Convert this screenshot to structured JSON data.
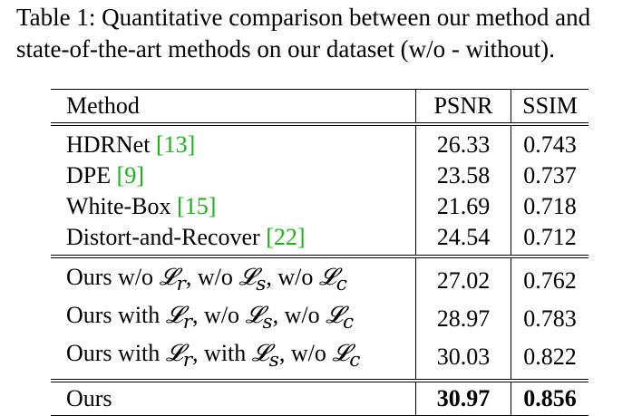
{
  "caption": "Table 1: Quantitative comparison between our method and state-of-the-art methods on our dataset (w/o - without).",
  "table": {
    "headers": {
      "method": "Method",
      "psnr": "PSNR",
      "ssim": "SSIM"
    },
    "baselines": [
      {
        "name": "HDRNet ",
        "cite": "[13]",
        "psnr": "26.33",
        "ssim": "0.743"
      },
      {
        "name": "DPE ",
        "cite": "[9]",
        "psnr": "23.58",
        "ssim": "0.737"
      },
      {
        "name": "White-Box ",
        "cite": "[15]",
        "psnr": "21.69",
        "ssim": "0.718"
      },
      {
        "name": "Distort-and-Recover ",
        "cite": "[22]",
        "psnr": "24.54",
        "ssim": "0.712"
      }
    ],
    "ablations": [
      {
        "parts": [
          "Ours w/o ",
          "𝓛",
          "r",
          ", w/o ",
          "𝓛",
          "s",
          ", w/o ",
          "𝓛",
          "c"
        ],
        "psnr": "27.02",
        "ssim": "0.762"
      },
      {
        "parts": [
          "Ours with ",
          "𝓛",
          "r",
          ", w/o ",
          "𝓛",
          "s",
          ", w/o ",
          "𝓛",
          "c"
        ],
        "psnr": "28.97",
        "ssim": "0.783"
      },
      {
        "parts": [
          "Ours with ",
          "𝓛",
          "r",
          ", with ",
          "𝓛",
          "s",
          ", w/o ",
          "𝓛",
          "c"
        ],
        "psnr": "30.03",
        "ssim": "0.822"
      }
    ],
    "ours": {
      "name": "Ours",
      "psnr": "30.97",
      "ssim": "0.856"
    }
  }
}
